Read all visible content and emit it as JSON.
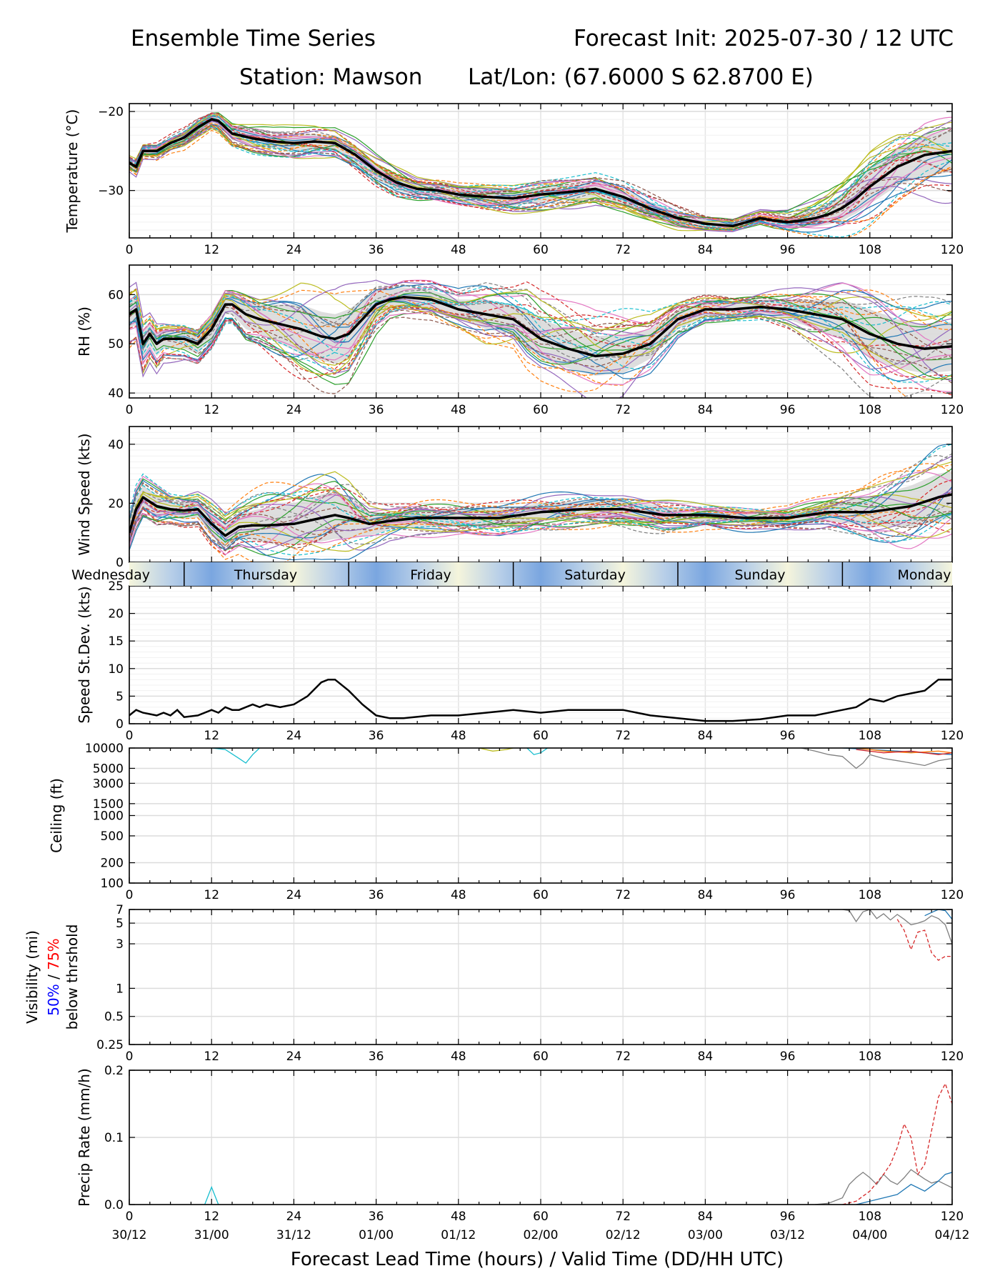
{
  "header": {
    "title_left": "Ensemble Time Series",
    "title_right": "Forecast Init: 2025-07-30 / 12 UTC",
    "station": "Station: Mawson",
    "latlon": "Lat/Lon: (67.6000 S 62.8700 E)"
  },
  "x_axis": {
    "label": "Forecast Lead Time (hours) / Valid Time (DD/HH UTC)",
    "lead_ticks": [
      "0",
      "12",
      "24",
      "36",
      "48",
      "60",
      "72",
      "84",
      "96",
      "108",
      "120"
    ],
    "valid_ticks": [
      "30/12",
      "31/00",
      "31/12",
      "01/00",
      "01/12",
      "02/00",
      "02/12",
      "03/00",
      "03/12",
      "04/00",
      "04/12"
    ]
  },
  "day_bar": {
    "days": [
      "Wednesday",
      "Thursday",
      "Friday",
      "Saturday",
      "Sunday",
      "Monday"
    ],
    "boundaries_hours": [
      8,
      32,
      56,
      80,
      104
    ]
  },
  "colors": {
    "mean": "#000000",
    "spread": "#d3d3d3",
    "member_palette": [
      "#1f77b4",
      "#ff7f0e",
      "#2ca02c",
      "#d62728",
      "#9467bd",
      "#8c564b",
      "#e377c2",
      "#7f7f7f",
      "#bcbd22",
      "#17becf"
    ],
    "vis_50": "#0000ff",
    "vis_75": "#ff0000",
    "day_night": "#7aa6e0",
    "day_noon": "#f5f5dc"
  },
  "chart_data": [
    {
      "type": "line",
      "ylabel": "Temperature (°C)",
      "xlim": [
        0,
        120
      ],
      "ylim": [
        -36,
        -19
      ],
      "yticks": [
        -30,
        -20
      ],
      "grid": true,
      "series": [
        {
          "role": "ensemble-mean",
          "x": [
            0,
            1,
            2,
            4,
            6,
            8,
            10,
            12,
            13,
            15,
            18,
            21,
            24,
            27,
            30,
            33,
            36,
            39,
            42,
            45,
            48,
            52,
            56,
            60,
            64,
            68,
            72,
            76,
            80,
            84,
            88,
            90,
            92,
            94,
            96,
            98,
            100,
            102,
            104,
            106,
            108,
            112,
            116,
            120
          ],
          "y": [
            -26.5,
            -27.0,
            -25.0,
            -25.0,
            -24.0,
            -23.3,
            -22.0,
            -21.0,
            -21.2,
            -22.8,
            -23.4,
            -23.8,
            -24.0,
            -23.8,
            -24.0,
            -25.5,
            -27.5,
            -29.0,
            -29.8,
            -30.0,
            -30.5,
            -30.8,
            -31.0,
            -30.5,
            -30.2,
            -29.8,
            -30.8,
            -32.3,
            -33.5,
            -34.2,
            -34.5,
            -34.0,
            -33.5,
            -33.8,
            -34.0,
            -33.8,
            -33.5,
            -33.0,
            -32.2,
            -31.0,
            -29.5,
            -27.0,
            -25.5,
            -25.0
          ]
        }
      ],
      "spread_halfwidth": [
        0.5,
        0.6,
        0.5,
        0.6,
        0.6,
        0.7,
        0.7,
        0.6,
        0.7,
        0.8,
        0.9,
        0.9,
        1.0,
        1.0,
        1.0,
        1.0,
        1.0,
        1.0,
        0.8,
        0.8,
        0.8,
        0.9,
        0.9,
        1.0,
        1.0,
        1.0,
        1.0,
        0.9,
        0.8,
        0.6,
        0.5,
        0.5,
        0.5,
        0.6,
        0.7,
        0.9,
        1.1,
        1.3,
        1.6,
        1.9,
        2.2,
        2.4,
        2.6,
        2.7
      ]
    },
    {
      "type": "line",
      "ylabel": "RH (%)",
      "xlim": [
        0,
        120
      ],
      "ylim": [
        39,
        66
      ],
      "yticks": [
        40,
        50,
        60
      ],
      "grid": true,
      "series": [
        {
          "role": "ensemble-mean",
          "x": [
            0,
            1,
            2,
            3,
            4,
            5,
            6,
            8,
            10,
            12,
            14,
            15,
            17,
            19,
            22,
            25,
            28,
            30,
            32,
            34,
            36,
            38,
            40,
            44,
            48,
            52,
            56,
            58,
            60,
            64,
            68,
            72,
            76,
            80,
            84,
            88,
            92,
            96,
            100,
            104,
            108,
            112,
            116,
            120
          ],
          "y": [
            56,
            57,
            50,
            52,
            50,
            51,
            51,
            51,
            50,
            53,
            58,
            58,
            56,
            55,
            54,
            53,
            51.5,
            51,
            52,
            55,
            58,
            59,
            59.5,
            59,
            57,
            56,
            55,
            53,
            51,
            49,
            47.5,
            48,
            50,
            55,
            57,
            57,
            57.5,
            57,
            56,
            55,
            52,
            50,
            49,
            49.5
          ]
        }
      ],
      "spread_halfwidth": [
        3,
        3,
        3,
        2.5,
        2.5,
        2,
        2,
        2,
        2,
        2,
        2,
        2,
        3,
        3,
        4,
        5,
        5,
        5,
        5,
        4,
        3,
        2,
        2,
        2,
        2,
        3,
        3,
        4,
        4,
        4,
        4,
        4,
        3,
        2,
        1.5,
        1.5,
        1.5,
        2,
        3,
        4,
        5,
        5,
        5,
        5
      ]
    },
    {
      "type": "line",
      "ylabel": "Wind Speed (kts)",
      "xlim": [
        0,
        120
      ],
      "ylim": [
        0,
        46
      ],
      "yticks": [
        0,
        20,
        40
      ],
      "grid": true,
      "series": [
        {
          "role": "ensemble-mean",
          "x": [
            0,
            1,
            2,
            4,
            6,
            8,
            10,
            12,
            14,
            16,
            18,
            20,
            24,
            28,
            30,
            32,
            35,
            38,
            42,
            48,
            54,
            60,
            66,
            72,
            78,
            84,
            90,
            96,
            102,
            108,
            114,
            118,
            120
          ],
          "y": [
            10,
            18,
            22,
            19,
            18,
            17.5,
            18,
            13,
            9,
            12,
            12.5,
            12.5,
            13,
            15,
            16,
            15,
            13,
            14,
            15,
            15,
            15,
            17,
            18,
            18,
            16,
            16,
            15,
            15,
            17,
            17,
            19,
            22,
            23
          ]
        }
      ],
      "spread_halfwidth": [
        3,
        4,
        4,
        4,
        3,
        3,
        3,
        4,
        4,
        4,
        5,
        6,
        7,
        8,
        8,
        7,
        4,
        3,
        3,
        3,
        3,
        3,
        3,
        3,
        3,
        2,
        2,
        2,
        3,
        5,
        7,
        8,
        8
      ]
    },
    {
      "type": "line",
      "ylabel": "Speed St.Dev. (kts)",
      "xlim": [
        0,
        120
      ],
      "ylim": [
        0,
        25
      ],
      "yticks": [
        0,
        5,
        10,
        15,
        20,
        25
      ],
      "grid": true,
      "series": [
        {
          "role": "ensemble-stdev",
          "x": [
            0,
            1,
            2,
            4,
            5,
            6,
            7,
            8,
            10,
            12,
            13,
            14,
            15,
            16,
            17,
            18,
            19,
            20,
            22,
            24,
            26,
            28,
            29,
            30,
            32,
            34,
            36,
            38,
            40,
            44,
            48,
            52,
            56,
            60,
            64,
            68,
            72,
            76,
            80,
            84,
            88,
            92,
            96,
            100,
            104,
            106,
            108,
            110,
            112,
            114,
            116,
            118,
            120
          ],
          "y": [
            1.5,
            2.5,
            2.0,
            1.5,
            2.0,
            1.5,
            2.5,
            1.2,
            1.5,
            2.5,
            2.0,
            3.0,
            2.5,
            2.5,
            3.0,
            3.5,
            3.0,
            3.5,
            3.0,
            3.5,
            5.0,
            7.5,
            8.0,
            8.0,
            6.0,
            3.5,
            1.5,
            1.0,
            1.0,
            1.5,
            1.5,
            2.0,
            2.5,
            2.0,
            2.5,
            2.5,
            2.5,
            1.5,
            1.0,
            0.5,
            0.5,
            0.8,
            1.5,
            1.5,
            2.5,
            3.0,
            4.5,
            4.0,
            5.0,
            5.5,
            6.0,
            8.0,
            8.0
          ]
        }
      ]
    },
    {
      "type": "line",
      "ylabel": "Ceiling (ft)",
      "xlim": [
        0,
        120
      ],
      "ylim": [
        100,
        10000
      ],
      "yscale": "log",
      "yticks": [
        100,
        200,
        500,
        1000,
        1500,
        3000,
        5000,
        10000
      ],
      "grid": true,
      "series": [
        {
          "role": "member",
          "color_index": 9,
          "x": [
            12,
            14,
            16,
            17,
            18,
            19
          ],
          "y": [
            10000,
            9500,
            7000,
            6000,
            8000,
            10000
          ]
        },
        {
          "role": "member",
          "color_index": 8,
          "x": [
            51,
            53,
            55,
            56
          ],
          "y": [
            10000,
            9000,
            9500,
            10000
          ]
        },
        {
          "role": "member",
          "color_index": 9,
          "x": [
            58,
            59,
            60,
            61
          ],
          "y": [
            10000,
            8000,
            8500,
            10000
          ]
        },
        {
          "role": "member",
          "color_index": 7,
          "x": [
            98,
            100,
            102,
            104,
            106,
            107,
            108,
            110,
            112,
            114,
            116,
            118,
            120
          ],
          "y": [
            10000,
            9000,
            8000,
            7500,
            5000,
            6000,
            8000,
            7000,
            6500,
            6000,
            5500,
            6500,
            7000
          ]
        },
        {
          "role": "member",
          "color_index": 0,
          "x": [
            104,
            108,
            112,
            116,
            120
          ],
          "y": [
            10000,
            9500,
            9000,
            8500,
            8000
          ]
        },
        {
          "role": "member",
          "color_index": 1,
          "x": [
            106,
            110,
            114,
            118,
            120
          ],
          "y": [
            10000,
            9000,
            8500,
            9000,
            8500
          ]
        },
        {
          "role": "member",
          "color_index": 3,
          "x": [
            106,
            110,
            114,
            118,
            120
          ],
          "y": [
            9500,
            8500,
            9000,
            8000,
            8500
          ]
        }
      ]
    },
    {
      "type": "line",
      "ylabel": "Visibility (mi)",
      "ylabel_parts": [
        "50%",
        " / ",
        "75%"
      ],
      "ylabel2": "below thrshold",
      "xlim": [
        0,
        120
      ],
      "ylim": [
        0.25,
        7
      ],
      "yscale": "log",
      "yticks": [
        0.25,
        0.5,
        1,
        3,
        5,
        7
      ],
      "grid": true,
      "series": [
        {
          "role": "member",
          "color_index": 7,
          "x": [
            104,
            105,
            106,
            107,
            108,
            109,
            110,
            111,
            112,
            113,
            114,
            115,
            116,
            117,
            118,
            119,
            120
          ],
          "y": [
            7,
            6.8,
            5.2,
            6.6,
            7,
            5.6,
            6.3,
            5.4,
            6.2,
            5.5,
            4.8,
            5.0,
            5.3,
            6.0,
            5.6,
            4.8,
            3.0
          ]
        },
        {
          "role": "member",
          "color_index": 3,
          "line": "dashed",
          "x": [
            112,
            113,
            114,
            115,
            116,
            117,
            118,
            119,
            120
          ],
          "y": [
            5.5,
            4.2,
            2.6,
            4.0,
            4.2,
            2.4,
            2.0,
            2.2,
            2.2
          ]
        },
        {
          "role": "member",
          "color_index": 0,
          "x": [
            116,
            117,
            118,
            119,
            120
          ],
          "y": [
            6.0,
            6.5,
            7.0,
            6.8,
            5.5
          ]
        }
      ]
    },
    {
      "type": "line",
      "ylabel": "Precip Rate (mm/h)",
      "xlim": [
        0,
        120
      ],
      "ylim": [
        0,
        0.2
      ],
      "yticks": [
        0.0,
        0.1,
        0.2
      ],
      "grid": true,
      "series": [
        {
          "role": "member",
          "color_index": 7,
          "x": [
            100,
            102,
            104,
            105,
            106,
            107,
            108,
            109,
            110,
            111,
            112,
            113,
            114,
            115,
            116,
            117,
            118,
            119,
            120
          ],
          "y": [
            0,
            0.002,
            0.01,
            0.03,
            0.04,
            0.048,
            0.04,
            0.03,
            0.045,
            0.035,
            0.03,
            0.04,
            0.052,
            0.045,
            0.038,
            0.032,
            0.035,
            0.03,
            0.025
          ]
        },
        {
          "role": "member",
          "color_index": 3,
          "line": "dashed",
          "x": [
            104,
            106,
            108,
            110,
            111,
            112,
            113,
            114,
            115,
            116,
            117,
            118,
            119,
            120
          ],
          "y": [
            0,
            0.005,
            0.02,
            0.045,
            0.06,
            0.085,
            0.12,
            0.1,
            0.045,
            0.06,
            0.11,
            0.16,
            0.18,
            0.15
          ]
        },
        {
          "role": "member",
          "color_index": 0,
          "x": [
            106,
            110,
            112,
            114,
            116,
            118,
            119,
            120
          ],
          "y": [
            0,
            0.01,
            0.015,
            0.03,
            0.02,
            0.035,
            0.045,
            0.048
          ]
        },
        {
          "role": "member",
          "color_index": 9,
          "x": [
            11,
            12,
            13
          ],
          "y": [
            0,
            0.026,
            0.0
          ]
        }
      ]
    }
  ]
}
